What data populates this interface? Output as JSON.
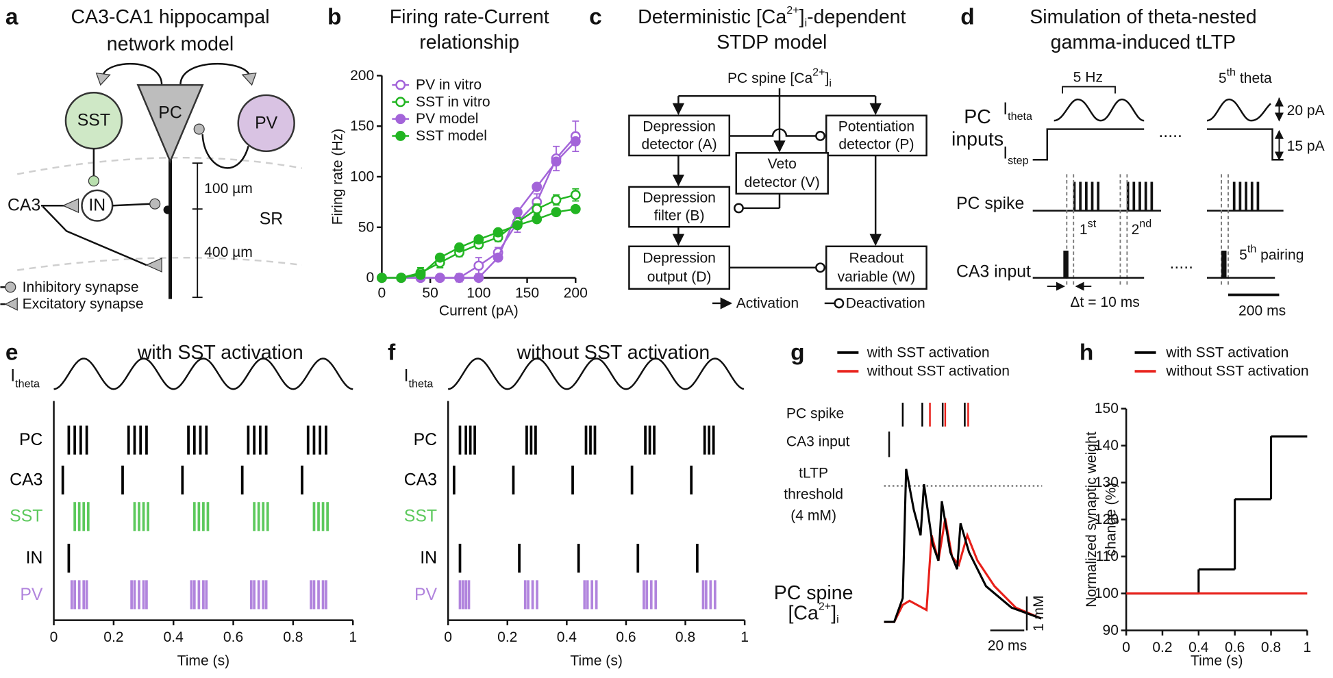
{
  "diagrams": {
    "a": {
      "label": "a",
      "title": [
        "CA3-CA1 hippocampal",
        "network model"
      ],
      "nodes": {
        "sst": "SST",
        "pc": "PC",
        "pv": "PV",
        "in": "IN",
        "ca3": "CA3"
      },
      "region": "SR",
      "scale": [
        "100 µm",
        "400 µm"
      ],
      "legend": [
        "Inhibitory synapse",
        "Excitatory synapse"
      ]
    },
    "c": {
      "label": "c",
      "title": [
        [
          "Deterministic [Ca",
          "2+",
          "]",
          "i",
          "-dependent"
        ],
        "STDP model"
      ],
      "input": [
        "PC spine [Ca",
        "2+",
        "]",
        "i"
      ],
      "boxes": {
        "A": [
          "Depression",
          "detector (A)"
        ],
        "P": [
          "Potentiation",
          "detector (P)"
        ],
        "V": [
          "Veto",
          "detector (V)"
        ],
        "B": [
          "Depression",
          "filter (B)"
        ],
        "D": [
          "Depression",
          "output (D)"
        ],
        "W": [
          "Readout",
          "variable (W)"
        ]
      },
      "legend": [
        "Activation",
        "Deactivation"
      ]
    },
    "d": {
      "label": "d",
      "title": [
        "Simulation of theta-nested",
        "gamma-induced tLTP"
      ],
      "freq": "5 Hz",
      "fifth_theta": [
        "5",
        "th",
        " theta"
      ],
      "inputs_label": [
        "PC",
        "inputs"
      ],
      "i_theta": [
        "I",
        "theta"
      ],
      "i_step": [
        "I",
        "step"
      ],
      "amp": [
        "20 pA",
        "15 pA"
      ],
      "rows": [
        "PC spike",
        "CA3 input"
      ],
      "pairings": [
        [
          "1",
          "st"
        ],
        [
          "2",
          "nd"
        ],
        [
          "5",
          "th",
          " pairing"
        ]
      ],
      "ellipsis": ".....",
      "dt": "Δt = 10 ms",
      "scalebar": "200 ms"
    }
  },
  "chart_data": [
    {
      "type": "line",
      "panel": "b",
      "title": [
        "Firing rate-Current",
        "relationship"
      ],
      "xlabel": "Current (pA)",
      "ylabel": "Firing rate (Hz)",
      "x": [
        0,
        20,
        40,
        60,
        80,
        100,
        120,
        140,
        160,
        180,
        200
      ],
      "xlim": [
        0,
        200
      ],
      "ylim": [
        0,
        200
      ],
      "xticks": [
        0,
        50,
        100,
        150,
        200
      ],
      "yticks": [
        0,
        50,
        100,
        150,
        200
      ],
      "legend": "upper left",
      "series": [
        {
          "name": "PV in vitro",
          "color": "#a364d9",
          "marker": "open",
          "values": [
            0,
            0,
            0,
            0,
            0,
            12,
            25,
            55,
            75,
            118,
            140
          ],
          "errors": [
            0,
            0,
            0,
            0,
            4,
            8,
            5,
            10,
            8,
            12,
            15
          ]
        },
        {
          "name": "SST in vitro",
          "color": "#22b522",
          "marker": "open",
          "values": [
            0,
            0,
            5,
            15,
            25,
            33,
            40,
            55,
            68,
            77,
            82
          ],
          "errors": [
            0,
            0,
            5,
            5,
            4,
            4,
            4,
            5,
            5,
            5,
            6
          ]
        },
        {
          "name": "PV model",
          "color": "#a364d9",
          "marker": "filled",
          "values": [
            0,
            0,
            0,
            0,
            0,
            0,
            20,
            65,
            90,
            115,
            135
          ]
        },
        {
          "name": "SST model",
          "color": "#22b522",
          "marker": "filled",
          "values": [
            0,
            0,
            3,
            20,
            30,
            38,
            45,
            52,
            58,
            65,
            68
          ]
        }
      ]
    },
    {
      "type": "raster",
      "panel": "e",
      "title": "with SST activation",
      "trace_label": [
        "I",
        "theta"
      ],
      "xlabel": "Time (s)",
      "xlim": [
        0,
        1
      ],
      "xticks": [
        0,
        0.2,
        0.4,
        0.6,
        0.8,
        1
      ],
      "rows": [
        {
          "name": "PC",
          "color": "#000000",
          "times": [
            0.05,
            0.07,
            0.09,
            0.11,
            0.25,
            0.27,
            0.29,
            0.31,
            0.45,
            0.47,
            0.49,
            0.51,
            0.65,
            0.67,
            0.69,
            0.71,
            0.85,
            0.87,
            0.89,
            0.91
          ]
        },
        {
          "name": "CA3",
          "color": "#000000",
          "times": [
            0.03,
            0.23,
            0.43,
            0.63,
            0.83
          ]
        },
        {
          "name": "SST",
          "color": "#5cc95c",
          "times": [
            0.07,
            0.085,
            0.1,
            0.115,
            0.27,
            0.285,
            0.3,
            0.315,
            0.47,
            0.485,
            0.5,
            0.515,
            0.67,
            0.685,
            0.7,
            0.715,
            0.87,
            0.885,
            0.9,
            0.915
          ]
        },
        {
          "name": "IN",
          "color": "#000000",
          "times": [
            0.05
          ]
        },
        {
          "name": "PV",
          "color": "#b184dd",
          "times": [
            0.06,
            0.07,
            0.085,
            0.1,
            0.11,
            0.26,
            0.27,
            0.285,
            0.3,
            0.31,
            0.46,
            0.47,
            0.485,
            0.5,
            0.51,
            0.66,
            0.67,
            0.685,
            0.7,
            0.71,
            0.86,
            0.87,
            0.885,
            0.9,
            0.91
          ]
        }
      ]
    },
    {
      "type": "raster",
      "panel": "f",
      "title": "without SST activation",
      "trace_label": [
        "I",
        "theta"
      ],
      "xlabel": "Time (s)",
      "xlim": [
        0,
        1
      ],
      "xticks": [
        0,
        0.2,
        0.4,
        0.6,
        0.8,
        1
      ],
      "rows": [
        {
          "name": "PC",
          "color": "#000000",
          "times": [
            0.04,
            0.06,
            0.075,
            0.09,
            0.265,
            0.28,
            0.295,
            0.465,
            0.48,
            0.495,
            0.665,
            0.68,
            0.695,
            0.865,
            0.88,
            0.895
          ]
        },
        {
          "name": "CA3",
          "color": "#000000",
          "times": [
            0.02,
            0.22,
            0.42,
            0.62,
            0.82
          ]
        },
        {
          "name": "SST",
          "color": "#5cc95c",
          "times": []
        },
        {
          "name": "IN",
          "color": "#000000",
          "times": [
            0.04,
            0.24,
            0.44,
            0.64,
            0.84
          ]
        },
        {
          "name": "PV",
          "color": "#b184dd",
          "times": [
            0.04,
            0.05,
            0.06,
            0.07,
            0.26,
            0.27,
            0.285,
            0.3,
            0.46,
            0.47,
            0.485,
            0.5,
            0.66,
            0.67,
            0.685,
            0.7,
            0.86,
            0.87,
            0.885,
            0.9
          ]
        }
      ]
    },
    {
      "type": "trace",
      "panel": "g",
      "spike_label": "PC spike",
      "ca3_label": "CA3 input",
      "ca3_input": [
        3
      ],
      "threshold": 4,
      "threshold_label": [
        "tLTP",
        "threshold",
        "(4 mM)"
      ],
      "ylabel": [
        "PC spine",
        [
          "[Ca",
          "2+",
          "]",
          "i"
        ]
      ],
      "xscale": {
        "value": 20,
        "label": "20 ms"
      },
      "yscale": {
        "value": 1,
        "label": "1 mM"
      },
      "series": [
        {
          "name": "with SST activation",
          "color": "#000000",
          "spikes": [
            11,
            22.5,
            34.5,
            47.5
          ],
          "x": [
            0,
            6,
            11,
            13,
            17.5,
            21.5,
            23.5,
            28.5,
            32,
            34,
            39,
            43,
            45,
            50,
            60,
            75,
            92.5
          ],
          "values": [
            0,
            0,
            0.7,
            4.5,
            3.3,
            2.55,
            4.05,
            2.3,
            1.8,
            3.55,
            2.05,
            1.55,
            2.9,
            2.05,
            1.05,
            0.42,
            0.1
          ]
        },
        {
          "name": "without SST activation",
          "color": "#e8201a",
          "spikes": [
            27,
            36,
            49.5
          ],
          "x": [
            0,
            6,
            11,
            15,
            25,
            28,
            32,
            36,
            40,
            44,
            49,
            55,
            65,
            77.5,
            92.5
          ],
          "values": [
            0,
            0,
            0.5,
            0.62,
            0.35,
            2.55,
            1.8,
            3.05,
            1.92,
            1.68,
            2.55,
            1.8,
            1.05,
            0.42,
            0.1
          ]
        }
      ]
    },
    {
      "type": "step",
      "panel": "h",
      "xlabel": "Time (s)",
      "ylabel": [
        "Normalized synaptic weight",
        "change (%)"
      ],
      "xlim": [
        0,
        1
      ],
      "ylim": [
        90,
        150
      ],
      "xticks": [
        0,
        0.2,
        0.4,
        0.6,
        0.8,
        1
      ],
      "yticks": [
        90,
        100,
        110,
        120,
        130,
        140,
        150
      ],
      "series": [
        {
          "name": "with SST activation",
          "color": "#000000",
          "x": [
            0,
            0.4,
            0.6,
            0.8
          ],
          "values": [
            100,
            106.5,
            125.5,
            142.5
          ]
        },
        {
          "name": "without SST activation",
          "color": "#e8201a",
          "x": [
            0
          ],
          "values": [
            100
          ]
        }
      ]
    }
  ]
}
